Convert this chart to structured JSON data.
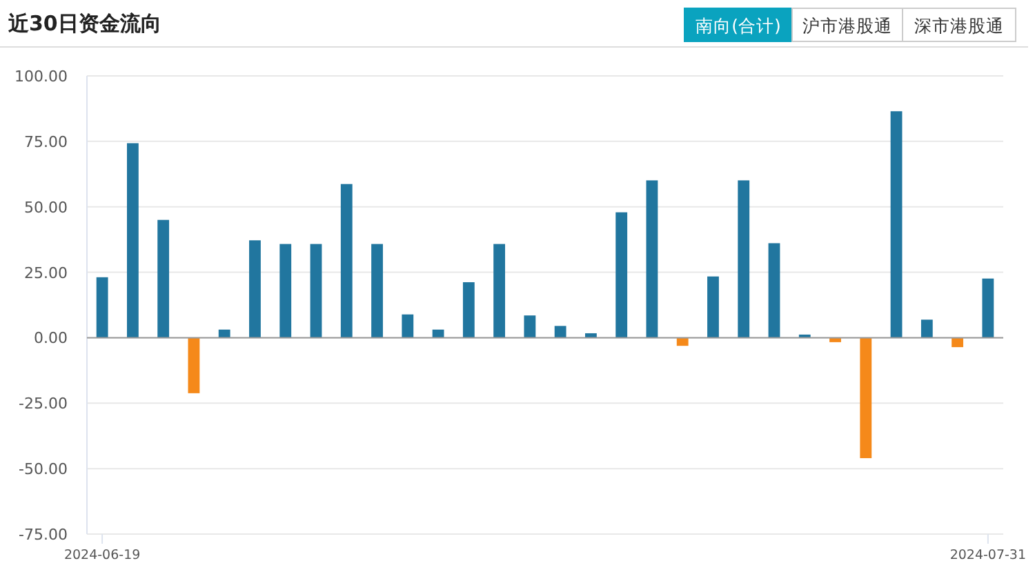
{
  "chart_data": {
    "type": "bar",
    "title": "近30日资金流向",
    "annotations": [
      "南向(合计)",
      "沪市港股通",
      "深市港股通"
    ],
    "categories": [
      "2024-06-19",
      null,
      null,
      null,
      null,
      null,
      null,
      null,
      null,
      null,
      null,
      null,
      null,
      null,
      null,
      null,
      null,
      null,
      null,
      null,
      null,
      null,
      null,
      null,
      null,
      null,
      null,
      null,
      null,
      "2024-07-31"
    ],
    "values": [
      23.1,
      74.3,
      45.0,
      -21.2,
      3.1,
      37.2,
      35.8,
      35.8,
      58.7,
      35.8,
      8.9,
      3.1,
      21.2,
      35.8,
      8.5,
      4.5,
      1.7,
      47.9,
      60.1,
      -3.1,
      23.4,
      60.1,
      36.1,
      1.2,
      -1.7,
      -46.0,
      86.5,
      6.9,
      -3.6,
      22.6
    ],
    "colors": [
      "#21769f",
      "#21769f",
      "#21769f",
      "#f5891a",
      "#21769f",
      "#21769f",
      "#21769f",
      "#21769f",
      "#21769f",
      "#21769f",
      "#21769f",
      "#21769f",
      "#21769f",
      "#21769f",
      "#21769f",
      "#21769f",
      "#21769f",
      "#21769f",
      "#21769f",
      "#f5891a",
      "#21769f",
      "#21769f",
      "#21769f",
      "#21769f",
      "#f5891a",
      "#f5891a",
      "#21769f",
      "#21769f",
      "#f5891a",
      "#21769f"
    ],
    "ylim": [
      -75,
      100
    ],
    "yticks": [
      {
        "value": 100,
        "label": "100.00"
      },
      {
        "value": 75,
        "label": "75.00"
      },
      {
        "value": 50,
        "label": "50.00"
      },
      {
        "value": 25,
        "label": "25.00"
      },
      {
        "value": 0,
        "label": "0.00"
      },
      {
        "value": -25,
        "label": "-25.00"
      },
      {
        "value": -50,
        "label": "-50.00"
      },
      {
        "value": -75,
        "label": "-75.00"
      }
    ],
    "grid": "y"
  }
}
